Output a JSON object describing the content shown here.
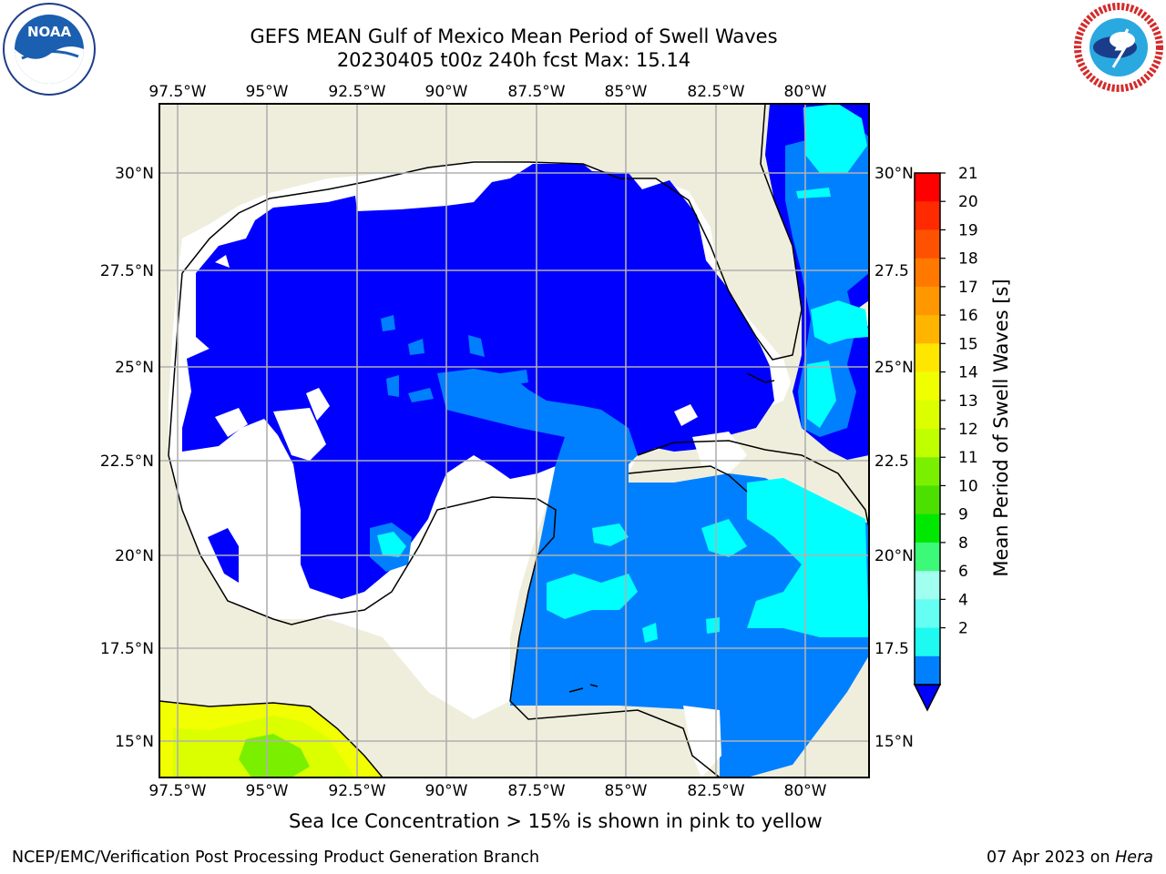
{
  "title": {
    "line1": "GEFS MEAN Gulf of Mexico Mean Period of Swell Waves",
    "line2": "20230405 t00z 240h fcst   Max: 15.14"
  },
  "logos": {
    "left": "noaa-logo",
    "right": "nws-logo"
  },
  "map": {
    "lon_labels": [
      "97.5°W",
      "95°W",
      "92.5°W",
      "90°W",
      "87.5°W",
      "85°W",
      "82.5°W",
      "80°W"
    ],
    "lat_labels_left": [
      "30°N",
      "27.5°N",
      "25°N",
      "22.5°N",
      "20°N",
      "17.5°N",
      "15°N"
    ],
    "lat_labels_right": [
      "30°N",
      "27.5",
      "25°N",
      "22.5",
      "20°N",
      "17.5",
      "15°N"
    ],
    "land_color": "#efeedc",
    "gridline_color": "#b0b0b0"
  },
  "colorbar": {
    "label": "Mean Period of Swell Waves [s]",
    "ticks": [
      "21",
      "20",
      "19",
      "18",
      "17",
      "16",
      "15",
      "14",
      "13",
      "12",
      "11",
      "10",
      "9",
      "8",
      "6",
      "4",
      "2"
    ],
    "colors_top_to_bottom": [
      "#ff0000",
      "#ff2a00",
      "#ff5200",
      "#ff7800",
      "#ff9800",
      "#ffb400",
      "#ffe600",
      "#f0ff00",
      "#dcff00",
      "#c0ff00",
      "#7af000",
      "#4ce000",
      "#00e800",
      "#3cfa78",
      "#a0ffee",
      "#64fff2",
      "#1efaf0",
      "#0080ff"
    ],
    "under_color": "#0000ff"
  },
  "notes": {
    "ice": "Sea Ice Concentration > 15% is shown in pink to yellow"
  },
  "footer": {
    "left": "NCEP/EMC/Verification Post Processing Product Generation Branch",
    "right_prefix": "07 Apr 2023 on ",
    "right_host": "Hera"
  }
}
